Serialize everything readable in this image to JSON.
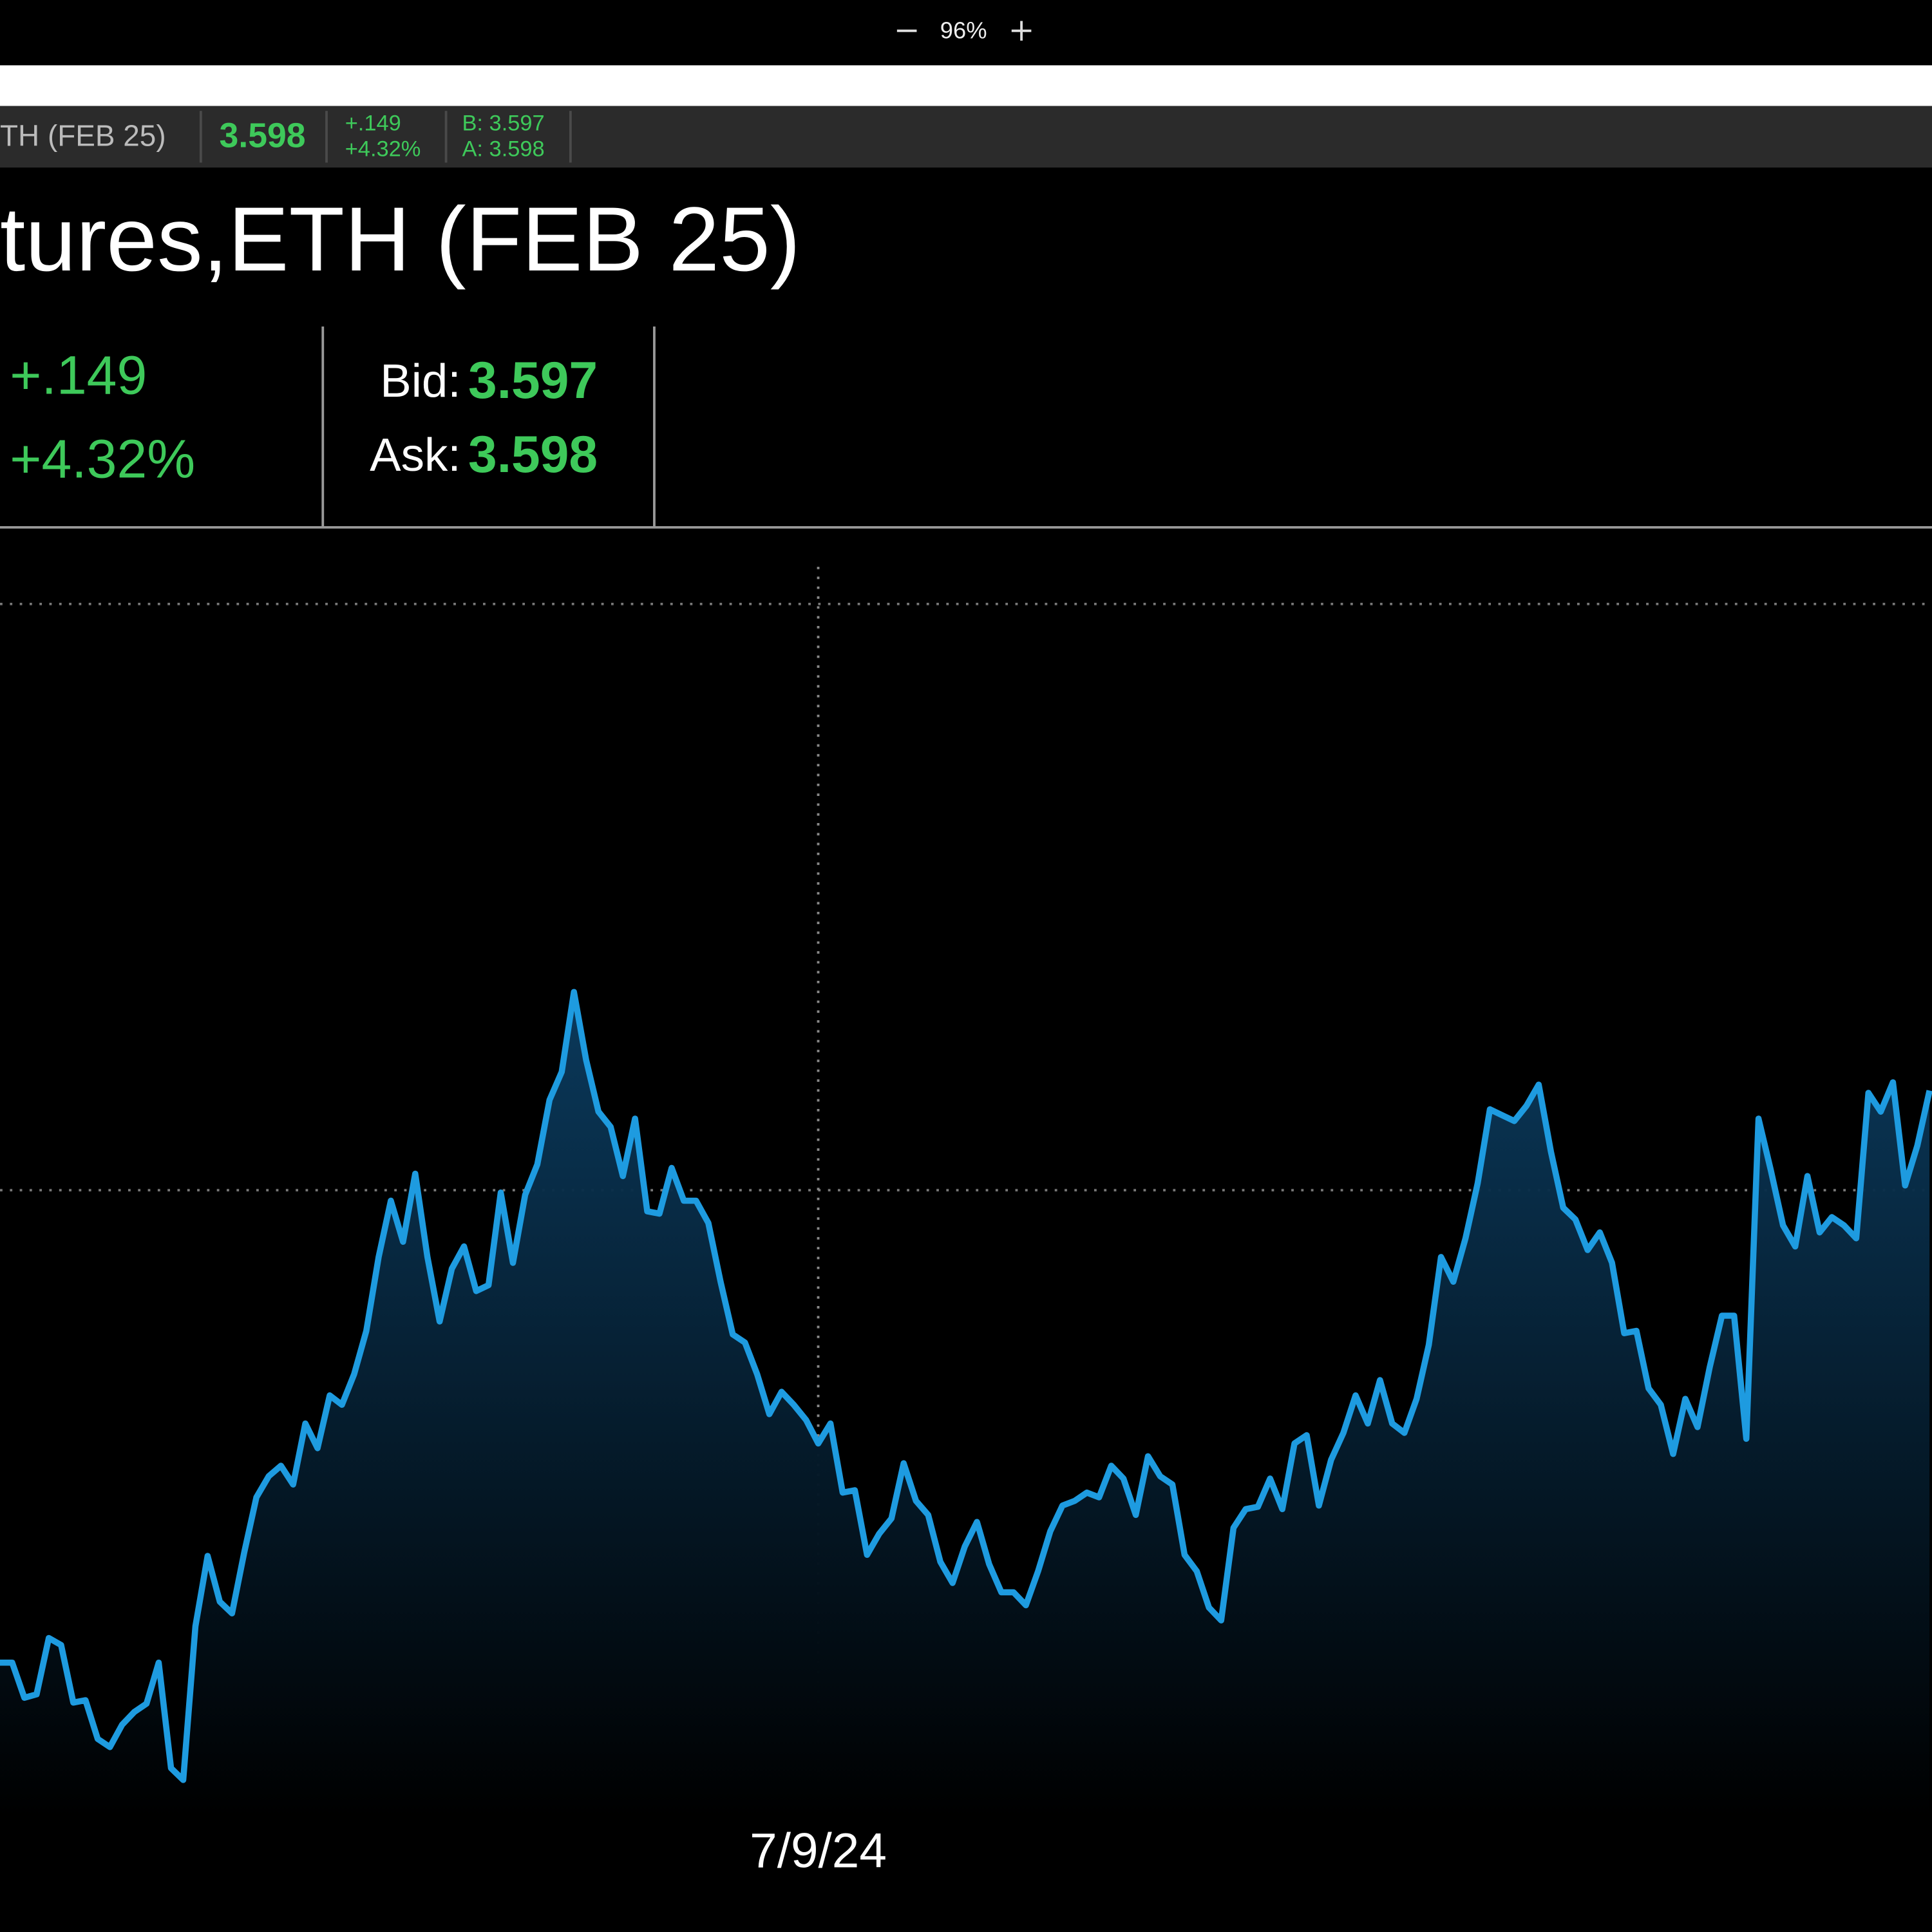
{
  "toolbar": {
    "zoom": "96%"
  },
  "ticker": {
    "symbol": "TH (FEB 25)",
    "last": "3.598",
    "change": "+.149",
    "change_pct": "+4.32%",
    "bid": "B: 3.597",
    "ask": "A: 3.598"
  },
  "header": {
    "title": "tures,ETH (FEB 25)",
    "change": "+.149",
    "change_pct": "+4.32%",
    "bid_label": "Bid:",
    "bid": "3.597",
    "ask_label": "Ask:",
    "ask": "3.598"
  },
  "chart_data": {
    "type": "area",
    "color": "#1e9be0",
    "grid": true,
    "values": [
      9.7,
      9.7,
      6.7,
      7.0,
      11.8,
      11.2,
      6.3,
      6.5,
      3.2,
      2.5,
      4.4,
      5.5,
      6.2,
      9.7,
      0.7,
      -0.3,
      12.8,
      18.8,
      14.9,
      13.9,
      19.1,
      23.8,
      25.6,
      26.5,
      24.9,
      30.1,
      28.0,
      32.5,
      31.7,
      34.3,
      38.0,
      44.3,
      49.1,
      45.6,
      51.4,
      44.3,
      38.8,
      43.3,
      45.2,
      41.4,
      41.9,
      49.8,
      43.8,
      49.6,
      52.2,
      57.7,
      60.1,
      66.9,
      61.1,
      56.7,
      55.4,
      51.2,
      56.1,
      48.2,
      48.0,
      51.9,
      49.1,
      49.1,
      47.2,
      42.2,
      37.7,
      37.0,
      34.3,
      30.9,
      32.8,
      31.7,
      30.4,
      28.4,
      30.1,
      24.2,
      24.4,
      18.9,
      20.7,
      22.0,
      26.7,
      23.5,
      22.3,
      18.3,
      16.5,
      19.6,
      21.7,
      18.1,
      15.7,
      15.7,
      14.6,
      17.5,
      20.9,
      23.1,
      23.5,
      24.2,
      23.8,
      26.5,
      25.4,
      22.3,
      27.3,
      25.6,
      24.9,
      18.9,
      17.5,
      14.4,
      13.3,
      21.2,
      22.8,
      23.0,
      25.4,
      22.8,
      28.4,
      29.1,
      23.1,
      27.0,
      29.3,
      32.5,
      30.1,
      33.8,
      30.1,
      29.3,
      32.2,
      36.8,
      44.3,
      42.2,
      45.9,
      50.6,
      56.9,
      56.4,
      55.9,
      57.2,
      59.0,
      53.3,
      48.5,
      47.5,
      44.9,
      46.4,
      43.8,
      37.8,
      38.0,
      33.1,
      31.7,
      27.5,
      32.2,
      29.8,
      34.9,
      39.3,
      39.3,
      28.8,
      56.1,
      51.7,
      47.0,
      45.2,
      51.2,
      46.4,
      47.7,
      47.0,
      45.9,
      58.3,
      56.7,
      59.2,
      50.4,
      53.8,
      58.5
    ],
    "xlim": [
      0,
      158
    ],
    "xticks": [
      {
        "value": 67,
        "label": "7/9/24"
      }
    ],
    "ylim": [
      -3.5,
      103.7
    ],
    "yticks": [
      0,
      50,
      100
    ]
  }
}
